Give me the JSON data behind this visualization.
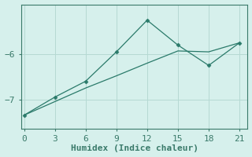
{
  "line1_x": [
    0,
    3,
    6,
    9,
    12,
    15,
    18,
    21
  ],
  "line1_y": [
    -7.35,
    -6.95,
    -6.6,
    -5.95,
    -5.25,
    -5.8,
    -6.25,
    -5.75
  ],
  "line2_x": [
    0,
    3,
    6,
    9,
    12,
    15,
    18,
    21
  ],
  "line2_y": [
    -7.35,
    -7.05,
    -6.75,
    -6.48,
    -6.2,
    -5.93,
    -5.95,
    -5.75
  ],
  "line_color": "#2a7a6a",
  "bg_color": "#d6f0ec",
  "grid_color": "#b5d9d3",
  "xlabel": "Humidex (Indice chaleur)",
  "xticks": [
    0,
    3,
    6,
    9,
    12,
    15,
    18,
    21
  ],
  "yticks": [
    -7,
    -6
  ],
  "ylim": [
    -7.65,
    -4.9
  ],
  "xlim": [
    -0.3,
    21.8
  ],
  "xlabel_fontsize": 8,
  "tick_fontsize": 8,
  "spine_color": "#3a7a6a"
}
